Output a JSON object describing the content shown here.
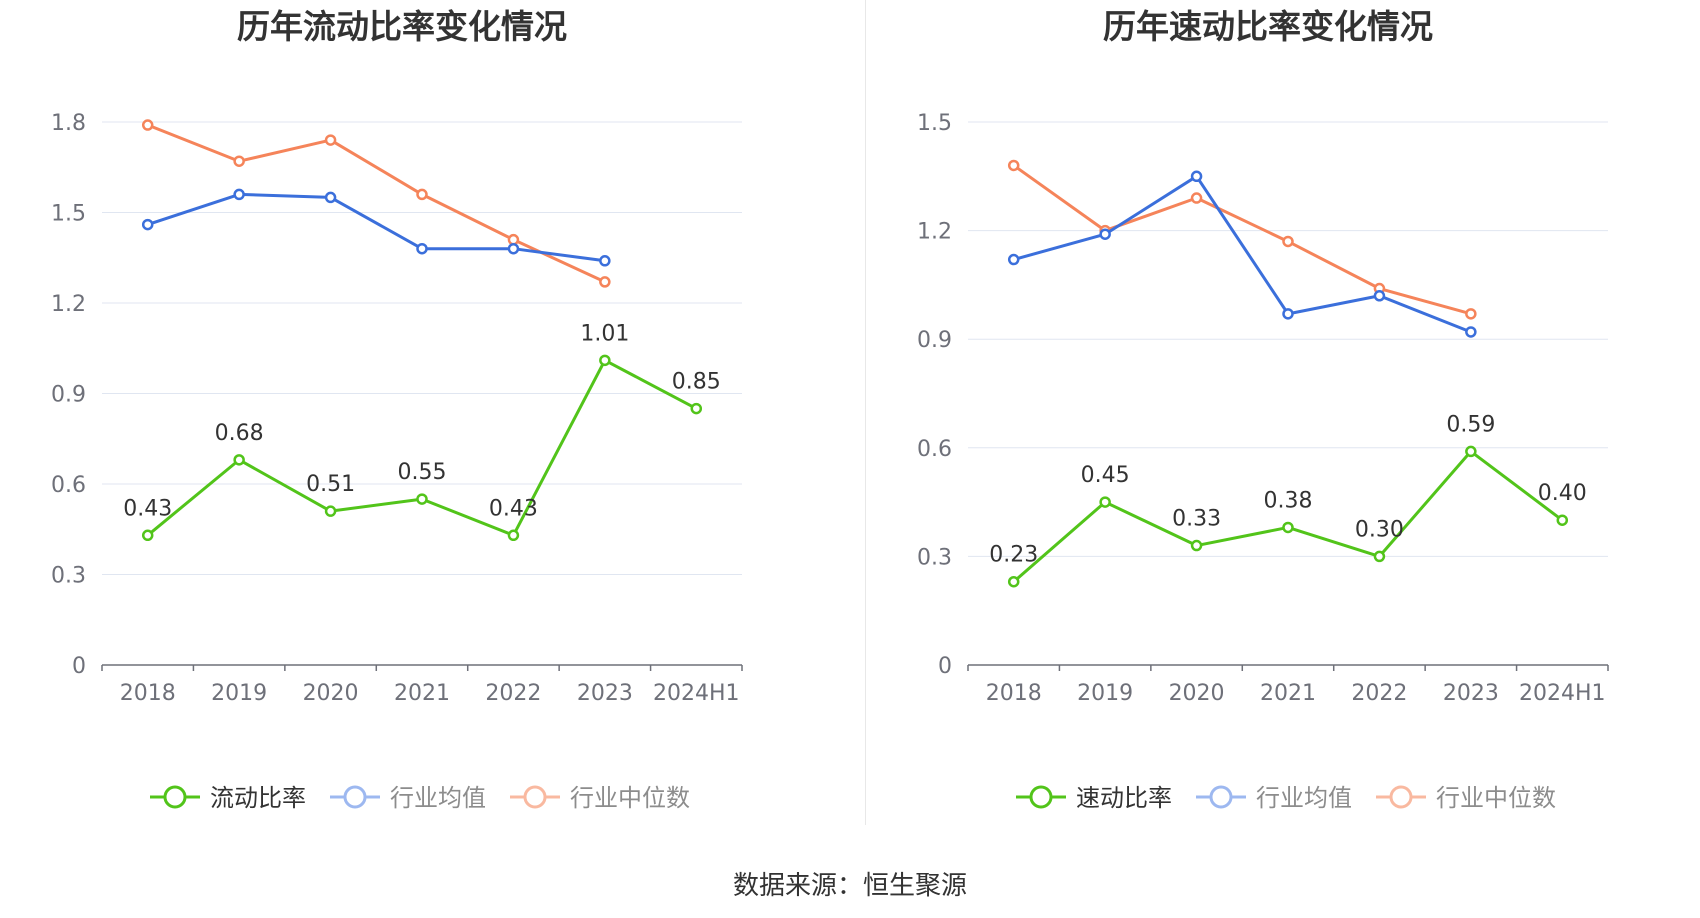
{
  "source": "数据来源：恒生聚源",
  "colors": {
    "green": "#52c41a",
    "blue": "#3b6fdb",
    "orange": "#f5845a",
    "legend_inactive_blue": "#9db8f0",
    "legend_inactive_orange": "#f9b9a0",
    "grid": "#e0e6f1",
    "axis": "#6e7079"
  },
  "chart_data": [
    {
      "type": "line",
      "title": "历年流动比率变化情况",
      "categories": [
        "2018",
        "2019",
        "2020",
        "2021",
        "2022",
        "2023",
        "2024H1"
      ],
      "ylim": [
        0,
        1.8
      ],
      "yticks": [
        0,
        0.3,
        0.6,
        0.9,
        1.2,
        1.5,
        1.8
      ],
      "ytick_labels": [
        "0",
        "0.3",
        "0.6",
        "0.9",
        "1.2",
        "1.5",
        "1.8"
      ],
      "grid": true,
      "legend_position": "bottom",
      "series": [
        {
          "name": "流动比率",
          "color": "#52c41a",
          "values": [
            0.43,
            0.68,
            0.51,
            0.55,
            0.43,
            1.01,
            0.85
          ],
          "labels": [
            "0.43",
            "0.68",
            "0.51",
            "0.55",
            "0.43",
            "1.01",
            "0.85"
          ]
        },
        {
          "name": "行业均值",
          "color": "#3b6fdb",
          "values": [
            1.46,
            1.56,
            1.55,
            1.38,
            1.38,
            1.34,
            null
          ]
        },
        {
          "name": "行业中位数",
          "color": "#f5845a",
          "values": [
            1.79,
            1.67,
            1.74,
            1.56,
            1.41,
            1.27,
            null
          ]
        }
      ]
    },
    {
      "type": "line",
      "title": "历年速动比率变化情况",
      "categories": [
        "2018",
        "2019",
        "2020",
        "2021",
        "2022",
        "2023",
        "2024H1"
      ],
      "ylim": [
        0,
        1.5
      ],
      "yticks": [
        0,
        0.3,
        0.6,
        0.9,
        1.2,
        1.5
      ],
      "ytick_labels": [
        "0",
        "0.3",
        "0.6",
        "0.9",
        "1.2",
        "1.5"
      ],
      "grid": true,
      "legend_position": "bottom",
      "series": [
        {
          "name": "速动比率",
          "color": "#52c41a",
          "values": [
            0.23,
            0.45,
            0.33,
            0.38,
            0.3,
            0.59,
            0.4
          ],
          "labels": [
            "0.23",
            "0.45",
            "0.33",
            "0.38",
            "0.30",
            "0.59",
            "0.40"
          ]
        },
        {
          "name": "行业均值",
          "color": "#3b6fdb",
          "values": [
            1.12,
            1.19,
            1.35,
            0.97,
            1.02,
            0.92,
            null
          ]
        },
        {
          "name": "行业中位数",
          "color": "#f5845a",
          "values": [
            1.38,
            1.2,
            1.29,
            1.17,
            1.04,
            0.97,
            null
          ]
        }
      ]
    }
  ]
}
